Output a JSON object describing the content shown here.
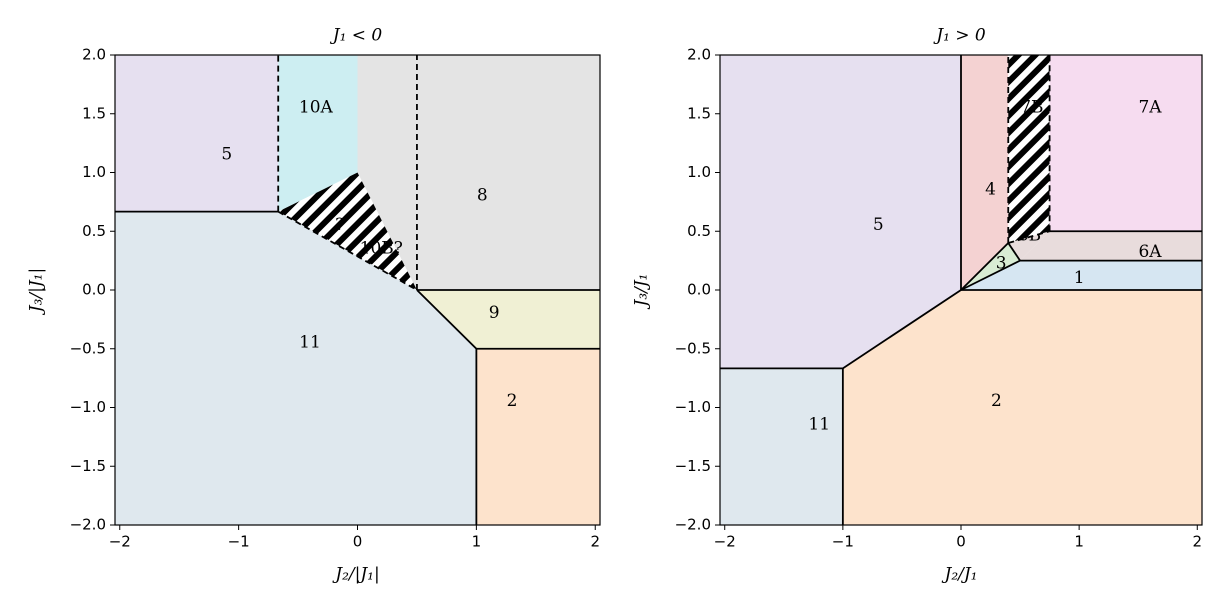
{
  "chart_data": [
    {
      "type": "phase-diagram",
      "title": "J₁ < 0",
      "x_label": "J₂/|J₁|",
      "y_label": "J₃/|J₁|",
      "xlim": [
        -2.04,
        2.04
      ],
      "ylim": [
        -2,
        2
      ],
      "xticks": [
        {
          "value": -2,
          "label": "−2"
        },
        {
          "value": -1,
          "label": "−1"
        },
        0,
        1,
        2
      ],
      "yticks": [
        {
          "value": -2,
          "label": "−2.0"
        },
        {
          "value": -1.5,
          "label": "−1.5"
        },
        {
          "value": -1,
          "label": "−1.0"
        },
        {
          "value": -0.5,
          "label": "−0.5"
        },
        {
          "value": 0,
          "label": "0.0"
        },
        0.5,
        {
          "value": 1,
          "label": "1.0"
        },
        1.5,
        {
          "value": 2,
          "label": "2.0"
        }
      ],
      "regions": [
        {
          "label": "5",
          "color": "#e6e0f0",
          "points": [
            [
              -2.04,
              0.667
            ],
            [
              -0.667,
              0.667
            ],
            [
              -0.667,
              2
            ],
            [
              -2.04,
              2
            ]
          ]
        },
        {
          "label": "10A",
          "color": "#cdeef2",
          "points": [
            [
              -0.667,
              0.667
            ],
            [
              -0.667,
              2
            ],
            [
              0,
              2
            ],
            [
              0,
              1
            ]
          ]
        },
        {
          "label": "8",
          "color": "#e4e4e4",
          "points": [
            [
              0,
              1
            ],
            [
              0,
              2
            ],
            [
              2.04,
              2
            ],
            [
              2.04,
              0
            ],
            [
              0.5,
              0
            ]
          ]
        },
        {
          "label": "10B?",
          "color": "#c8c8c8",
          "hatch": true,
          "points": [
            [
              -0.667,
              0.667
            ],
            [
              0,
              1
            ],
            [
              0.5,
              0
            ]
          ]
        },
        {
          "label": "9",
          "color": "#f0f0d4",
          "points": [
            [
              0.5,
              0
            ],
            [
              2.04,
              0
            ],
            [
              2.04,
              -0.5
            ],
            [
              1,
              -0.5
            ]
          ]
        },
        {
          "label": "2",
          "color": "#fde3cc",
          "points": [
            [
              1,
              -0.5
            ],
            [
              2.04,
              -0.5
            ],
            [
              2.04,
              -2
            ],
            [
              1,
              -2
            ]
          ]
        },
        {
          "label": "11",
          "color": "#dfe8ee",
          "points": [
            [
              -2.04,
              -2
            ],
            [
              1,
              -2
            ],
            [
              1,
              -0.5
            ],
            [
              0.5,
              0
            ],
            [
              -0.667,
              0.667
            ],
            [
              -2.04,
              0.667
            ]
          ]
        }
      ],
      "annotations": [
        "?"
      ],
      "boundaries": [
        {
          "style": "solid",
          "points": [
            [
              -2.04,
              0.667
            ],
            [
              -0.667,
              0.667
            ]
          ]
        },
        {
          "style": "solid",
          "points": [
            [
              0.5,
              0
            ],
            [
              1,
              -0.5
            ],
            [
              1,
              -2
            ]
          ]
        },
        {
          "style": "solid",
          "points": [
            [
              0.5,
              0
            ],
            [
              2.04,
              0
            ]
          ]
        },
        {
          "style": "solid",
          "points": [
            [
              1,
              -0.5
            ],
            [
              2.04,
              -0.5
            ]
          ]
        },
        {
          "style": "dashed",
          "points": [
            [
              -0.667,
              0.667
            ],
            [
              -0.667,
              2
            ]
          ]
        },
        {
          "style": "dashed",
          "points": [
            [
              -0.667,
              0.667
            ],
            [
              0.5,
              0
            ]
          ]
        },
        {
          "style": "dashed",
          "points": [
            [
              0.5,
              0
            ],
            [
              0.5,
              2
            ]
          ]
        }
      ]
    },
    {
      "type": "phase-diagram",
      "title": "J₁ > 0",
      "x_label": "J₂/J₁",
      "y_label": "J₃/J₁",
      "xlim": [
        -2.04,
        2.04
      ],
      "ylim": [
        -2,
        2
      ],
      "xticks": [
        {
          "value": -2,
          "label": "−2"
        },
        {
          "value": -1,
          "label": "−1"
        },
        0,
        1,
        2
      ],
      "yticks": [
        {
          "value": -2,
          "label": "−2.0"
        },
        {
          "value": -1.5,
          "label": "−1.5"
        },
        {
          "value": -1,
          "label": "−1.0"
        },
        {
          "value": -0.5,
          "label": "−0.5"
        },
        {
          "value": 0,
          "label": "0.0"
        },
        0.5,
        {
          "value": 1,
          "label": "1.0"
        },
        1.5,
        {
          "value": 2,
          "label": "2.0"
        }
      ],
      "regions": [
        {
          "label": "5",
          "color": "#e6e0f0",
          "points": [
            [
              -2.04,
              2
            ],
            [
              0,
              2
            ],
            [
              0,
              0
            ],
            [
              -1,
              -0.667
            ],
            [
              -2.04,
              -0.667
            ]
          ]
        },
        {
          "label": "11",
          "color": "#dfe8ee",
          "points": [
            [
              -2.04,
              -0.667
            ],
            [
              -1,
              -0.667
            ],
            [
              -1,
              -2
            ],
            [
              -2.04,
              -2
            ]
          ]
        },
        {
          "label": "2",
          "color": "#fde3cc",
          "points": [
            [
              -1,
              -2
            ],
            [
              2.04,
              -2
            ],
            [
              2.04,
              0
            ],
            [
              0,
              0
            ],
            [
              -1,
              -0.667
            ]
          ]
        },
        {
          "label": "1",
          "color": "#d6e6f2",
          "points": [
            [
              0,
              0
            ],
            [
              2.04,
              0
            ],
            [
              2.04,
              0.25
            ],
            [
              0.5,
              0.25
            ]
          ]
        },
        {
          "label": "6A",
          "color": "#e8dcdc",
          "points": [
            [
              0.5,
              0.25
            ],
            [
              2.04,
              0.25
            ],
            [
              2.04,
              0.5
            ],
            [
              0.75,
              0.5
            ]
          ]
        },
        {
          "label": "6B",
          "color": "#e8dcdc",
          "points": [
            [
              0.4,
              0.4
            ],
            [
              0.5,
              0.25
            ],
            [
              0.75,
              0.5
            ]
          ]
        },
        {
          "label": "3",
          "color": "#d8ecd4",
          "points": [
            [
              0,
              0
            ],
            [
              0.4,
              0.4
            ],
            [
              0.5,
              0.25
            ]
          ]
        },
        {
          "label": "4",
          "color": "#f4d2d2",
          "points": [
            [
              0,
              0
            ],
            [
              0,
              2
            ],
            [
              0.4,
              2
            ],
            [
              0.4,
              0.4
            ]
          ]
        },
        {
          "label": "7B",
          "color": "#f6c6e6",
          "hatch": true,
          "points": [
            [
              0.4,
              0.4
            ],
            [
              0.4,
              2
            ],
            [
              0.75,
              2
            ],
            [
              0.75,
              0.5
            ]
          ]
        },
        {
          "label": "7A",
          "color": "#f6dcf0",
          "points": [
            [
              0.75,
              0.5
            ],
            [
              0.75,
              2
            ],
            [
              2.04,
              2
            ],
            [
              2.04,
              0.5
            ]
          ]
        }
      ],
      "boundaries": [
        {
          "style": "solid",
          "points": [
            [
              0,
              0
            ],
            [
              0,
              2
            ]
          ]
        },
        {
          "style": "solid",
          "points": [
            [
              -2.04,
              -0.667
            ],
            [
              -1,
              -0.667
            ],
            [
              0,
              0
            ]
          ]
        },
        {
          "style": "solid",
          "points": [
            [
              -1,
              -0.667
            ],
            [
              -1,
              -2
            ]
          ]
        },
        {
          "style": "solid",
          "points": [
            [
              0,
              0
            ],
            [
              2.04,
              0
            ]
          ]
        },
        {
          "style": "solid",
          "points": [
            [
              0,
              0
            ],
            [
              0.4,
              0.4
            ]
          ]
        },
        {
          "style": "solid",
          "points": [
            [
              0,
              0
            ],
            [
              0.5,
              0.25
            ],
            [
              2.04,
              0.25
            ]
          ]
        },
        {
          "style": "solid",
          "points": [
            [
              0.4,
              0.4
            ],
            [
              0.5,
              0.25
            ]
          ]
        },
        {
          "style": "solid",
          "points": [
            [
              0.75,
              0.5
            ],
            [
              2.04,
              0.5
            ]
          ]
        },
        {
          "style": "dashed",
          "points": [
            [
              0.4,
              0.4
            ],
            [
              0.4,
              2
            ]
          ]
        },
        {
          "style": "dashed",
          "points": [
            [
              0.75,
              0.5
            ],
            [
              0.75,
              2
            ]
          ]
        },
        {
          "style": "dashed",
          "points": [
            [
              0.4,
              0.4
            ],
            [
              0.75,
              0.5
            ]
          ]
        }
      ]
    }
  ]
}
